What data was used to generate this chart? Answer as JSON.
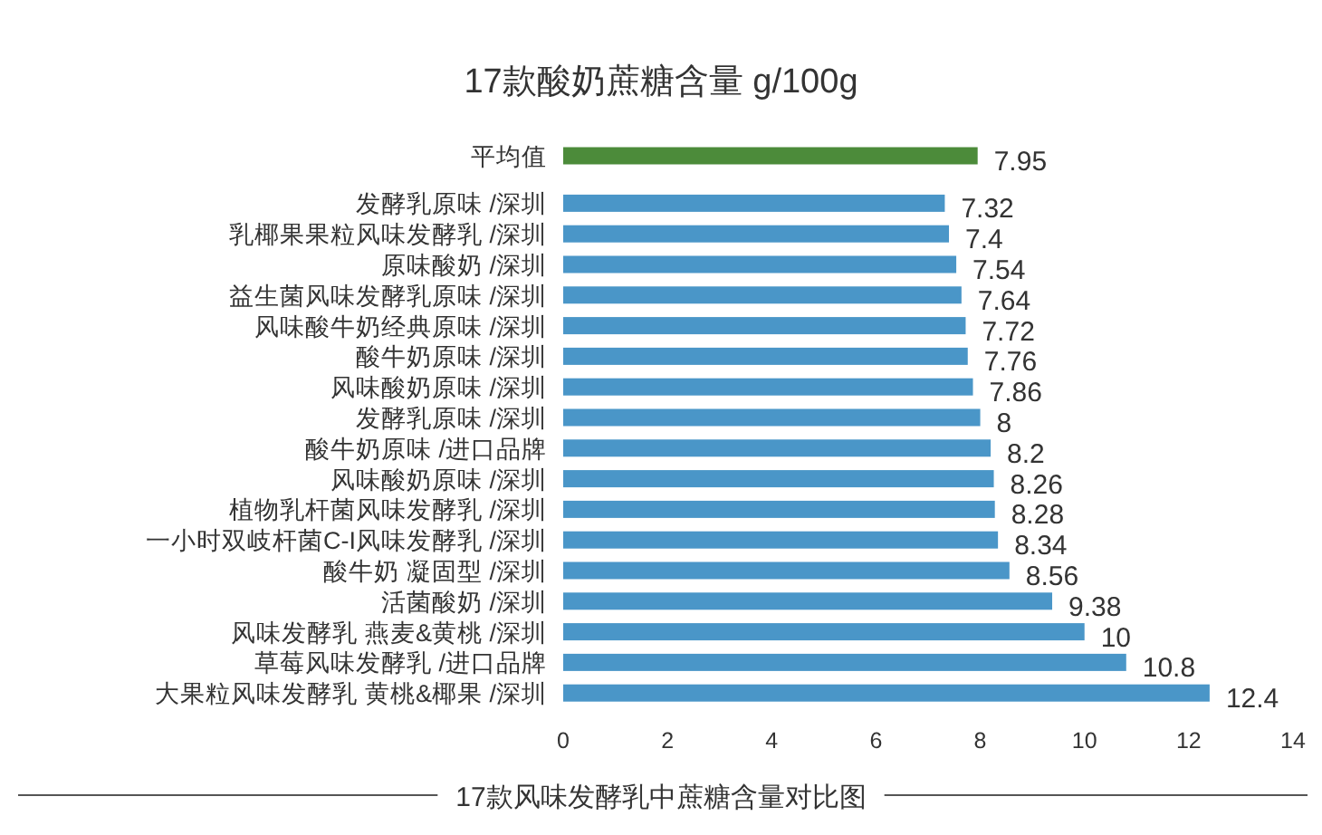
{
  "chart_data": {
    "type": "bar",
    "orientation": "horizontal",
    "title": "17款酸奶蔗糖含量 g/100g",
    "annotations": [
      "17款风味发酵乳中蔗糖含量对比图"
    ],
    "categories": [
      "平均值",
      "发酵乳原味 /深圳",
      "乳椰果果粒风味发酵乳 /深圳",
      "原味酸奶 /深圳",
      "益生菌风味发酵乳原味 /深圳",
      "风味酸牛奶经典原味 /深圳",
      "酸牛奶原味 /深圳",
      "风味酸奶原味 /深圳",
      "发酵乳原味 /深圳",
      "酸牛奶原味 /进口品牌",
      "风味酸奶原味 /深圳",
      "植物乳杆菌风味发酵乳 /深圳",
      "一小时双岐杆菌C-I风味发酵乳 /深圳",
      "酸牛奶 凝固型 /深圳",
      "活菌酸奶 /深圳",
      "风味发酵乳 燕麦&黄桃 /深圳",
      "草莓风味发酵乳 /进口品牌",
      "大果粒风味发酵乳 黄桃&椰果 /深圳"
    ],
    "values": [
      7.95,
      7.32,
      7.4,
      7.54,
      7.64,
      7.72,
      7.76,
      7.86,
      8,
      8.2,
      8.26,
      8.28,
      8.34,
      8.56,
      9.38,
      10,
      10.8,
      12.4
    ],
    "colors": [
      "#4c8b3a",
      "#4a96c8",
      "#4a96c8",
      "#4a96c8",
      "#4a96c8",
      "#4a96c8",
      "#4a96c8",
      "#4a96c8",
      "#4a96c8",
      "#4a96c8",
      "#4a96c8",
      "#4a96c8",
      "#4a96c8",
      "#4a96c8",
      "#4a96c8",
      "#4a96c8",
      "#4a96c8",
      "#4a96c8"
    ],
    "xlim": [
      0,
      14
    ],
    "xticks": [
      0,
      2,
      4,
      6,
      8,
      10,
      12,
      14
    ],
    "data_labels": true
  }
}
